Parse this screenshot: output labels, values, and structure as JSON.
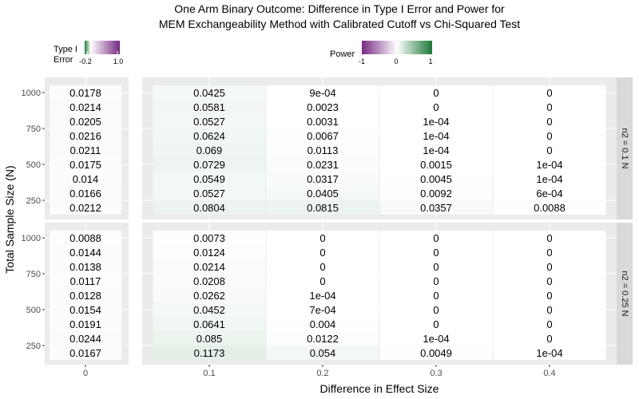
{
  "chart_data": {
    "type": "heatmap",
    "title": "One Arm Binary Outcome: Difference in Type I Error and Power for",
    "subtitle": "MEM Exchangeability Method with Calibrated Cutoff vs Chi-Squared Test",
    "xlabel": "Difference in Effect Size",
    "ylabel": "Total Sample Size (N)",
    "y_rows": [
      1000,
      900,
      800,
      700,
      600,
      500,
      400,
      300,
      200
    ],
    "y_ticks": [
      1000,
      750,
      500,
      250
    ],
    "x_ticks": [
      "0.1",
      "0.2",
      "0.3",
      "0.4"
    ],
    "left_x_tick": "0",
    "legend_type1": {
      "title_line1": "Type I",
      "title_line2": "Error",
      "min_label": "-0.2",
      "max_label": "1.0",
      "low_color": "#1b7837",
      "mid_color": "#ffffff",
      "high_color": "#762a83",
      "limits": [
        -0.2,
        1.0
      ]
    },
    "legend_power": {
      "title": "Power",
      "min_label": "-1",
      "mid_label": "0",
      "max_label": "1",
      "low_color": "#762a83",
      "mid_color": "#ffffff",
      "high_color": "#1b7837",
      "limits": [
        -1,
        1
      ]
    },
    "facets": [
      {
        "label": "n2 = 0.1 N",
        "type1_error": [
          "0.0178",
          "0.0214",
          "0.0205",
          "0.0216",
          "0.0211",
          "0.0175",
          "0.014",
          "0.0166",
          "0.0212"
        ],
        "power": [
          [
            "0.0425",
            "9e-04",
            "0",
            "0"
          ],
          [
            "0.0581",
            "0.0023",
            "0",
            "0"
          ],
          [
            "0.0527",
            "0.0031",
            "1e-04",
            "0"
          ],
          [
            "0.0624",
            "0.0067",
            "1e-04",
            "0"
          ],
          [
            "0.069",
            "0.0113",
            "1e-04",
            "0"
          ],
          [
            "0.0729",
            "0.0231",
            "0.0015",
            "1e-04"
          ],
          [
            "0.0549",
            "0.0317",
            "0.0045",
            "1e-04"
          ],
          [
            "0.0527",
            "0.0405",
            "0.0092",
            "6e-04"
          ],
          [
            "0.0804",
            "0.0815",
            "0.0357",
            "0.0088"
          ]
        ]
      },
      {
        "label": "n2 = 0.25 N",
        "type1_error": [
          "0.0088",
          "0.0144",
          "0.0138",
          "0.0117",
          "0.0128",
          "0.0154",
          "0.0191",
          "0.0244",
          "0.0167"
        ],
        "power": [
          [
            "0.0073",
            "0",
            "0",
            "0"
          ],
          [
            "0.0124",
            "0",
            "0",
            "0"
          ],
          [
            "0.0214",
            "0",
            "0",
            "0"
          ],
          [
            "0.0208",
            "0",
            "0",
            "0"
          ],
          [
            "0.0262",
            "1e-04",
            "0",
            "0"
          ],
          [
            "0.0452",
            "7e-04",
            "0",
            "0"
          ],
          [
            "0.0641",
            "0.004",
            "0",
            "0"
          ],
          [
            "0.085",
            "0.0122",
            "1e-04",
            "0"
          ],
          [
            "0.1173",
            "0.054",
            "0.0049",
            "1e-04"
          ]
        ]
      }
    ]
  }
}
